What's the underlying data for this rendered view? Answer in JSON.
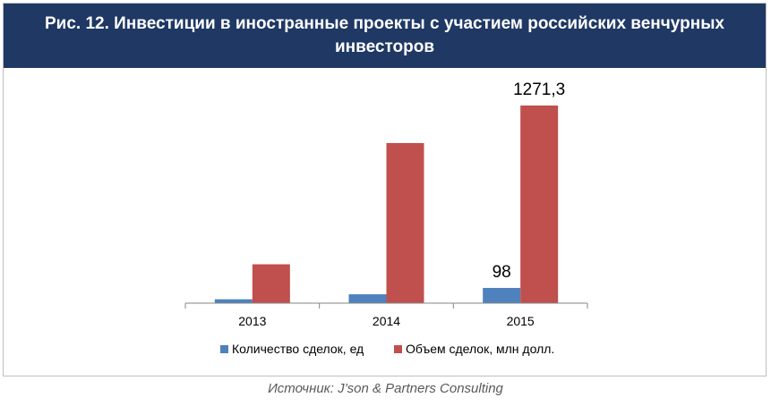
{
  "chart_data": {
    "type": "bar",
    "title": "Рис. 12. Инвестиции в иностранные проекты с участием российских венчурных инвесторов",
    "categories": [
      "2013",
      "2014",
      "2015"
    ],
    "series": [
      {
        "name": "Количество сделок, ед",
        "color": "#4f81bd",
        "values": [
          25,
          57,
          98
        ],
        "data_labels": [
          "",
          "",
          "98"
        ]
      },
      {
        "name": "Объем сделок, млн долл.",
        "color": "#c0504d",
        "values": [
          250,
          1030,
          1271.3
        ],
        "data_labels": [
          "",
          "",
          "1271,3"
        ]
      }
    ],
    "legend_position": "bottom",
    "grid": false
  },
  "source": "Источник: J’son & Partners Consulting"
}
